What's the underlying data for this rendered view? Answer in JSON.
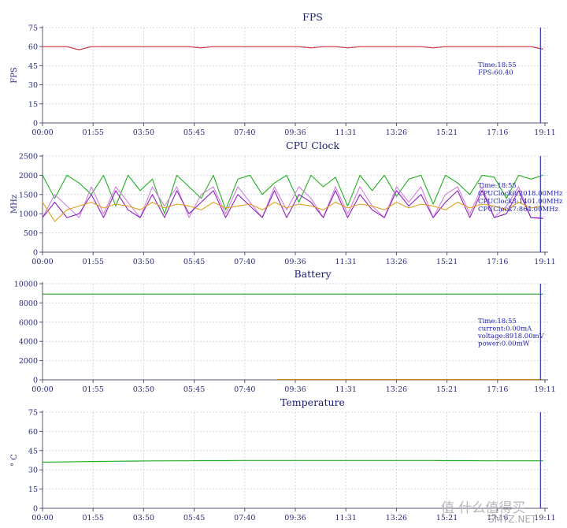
{
  "x_labels": [
    "00:00",
    "01:55",
    "03:50",
    "05:45",
    "07:40",
    "09:36",
    "11:31",
    "13:26",
    "15:21",
    "17:16",
    "19:11"
  ],
  "colors": {
    "axis": "#555577",
    "grid": "#c8d0e0",
    "cursor": "#4a4ab0",
    "text": "#2a2a7a",
    "annotation": "#2020b0"
  },
  "chart_data": [
    {
      "type": "line",
      "title": "FPS",
      "ylabel": "FPS",
      "ylim": [
        0,
        75
      ],
      "yticks": [
        "0",
        "15",
        "30",
        "45",
        "60",
        "75"
      ],
      "series": [
        {
          "color": "#d0303a",
          "values": [
            60,
            60,
            60,
            57.5,
            60,
            60,
            60,
            60,
            60,
            60,
            60,
            60,
            60,
            59,
            60,
            60,
            60,
            60,
            60,
            60,
            60,
            60,
            59,
            60,
            60,
            59,
            60,
            60,
            60,
            60,
            60,
            60,
            59,
            60,
            60,
            60,
            60,
            60,
            60,
            60,
            60,
            58
          ]
        }
      ],
      "annotation": [
        "Time:18:55",
        "FPS:60.40"
      ]
    },
    {
      "type": "line",
      "title": "CPU Clock",
      "ylabel": "MHz",
      "ylim": [
        0,
        2500
      ],
      "yticks": [
        "0",
        "500",
        "1000",
        "1500",
        "2000",
        "2500"
      ],
      "series": [
        {
          "color": "#22b022",
          "values": [
            2000,
            1400,
            2000,
            1800,
            1500,
            2000,
            1200,
            2000,
            1600,
            1900,
            1000,
            2000,
            1700,
            1400,
            2000,
            1100,
            1900,
            2000,
            1500,
            1800,
            2000,
            1300,
            2000,
            1700,
            1950,
            1200,
            2000,
            1600,
            2000,
            1450,
            1900,
            2000,
            1250,
            2000,
            1800,
            1500,
            2000,
            1950,
            1400,
            2000,
            1900,
            2000
          ]
        },
        {
          "color": "#d080e0",
          "values": [
            900,
            1500,
            1200,
            900,
            1700,
            1000,
            1700,
            1300,
            900,
            1700,
            1200,
            1700,
            900,
            1500,
            1700,
            1000,
            1700,
            1300,
            900,
            1700,
            1100,
            1700,
            1400,
            900,
            1700,
            1000,
            1700,
            1200,
            900,
            1700,
            1300,
            1700,
            900,
            1500,
            1700,
            1000,
            1700,
            900,
            1200,
            1700,
            900,
            900
          ]
        },
        {
          "color": "#9020c0",
          "values": [
            900,
            1300,
            900,
            1000,
            1500,
            900,
            1600,
            1100,
            900,
            1500,
            900,
            1600,
            1000,
            1300,
            1600,
            900,
            1500,
            1200,
            900,
            1600,
            900,
            1500,
            1300,
            900,
            1600,
            900,
            1500,
            1100,
            900,
            1600,
            1200,
            1500,
            900,
            1300,
            1600,
            900,
            1600,
            900,
            1000,
            1600,
            900,
            870
          ]
        },
        {
          "color": "#e0a020",
          "values": [
            1300,
            800,
            1100,
            1200,
            1300,
            1150,
            1250,
            1200,
            1100,
            1300,
            1150,
            1250,
            1200,
            1100,
            1300,
            1150,
            1200,
            1250,
            1100,
            1300,
            1150,
            1250,
            1200,
            1100,
            1300,
            1150,
            1250,
            1200,
            1100,
            1300,
            1150,
            1250,
            1200,
            1100,
            1300,
            1150,
            1250,
            1200,
            1100,
            1300,
            1150,
            1200
          ]
        }
      ],
      "annotation": [
        "Time:18:55",
        "CPUClock0:2018.00MHz",
        "CPUClock3:1401.00MHz",
        "CPUClock7:864.00MHz"
      ]
    },
    {
      "type": "line",
      "title": "Battery",
      "ylabel": "",
      "ylim": [
        0,
        10000
      ],
      "yticks": [
        "0",
        "2000",
        "4000",
        "6000",
        "8000",
        "10000"
      ],
      "series": [
        {
          "color": "#22a022",
          "values": [
            8918,
            8918,
            8918,
            8918,
            8918,
            8918,
            8918,
            8918,
            8918,
            8918,
            8918,
            8918,
            8918,
            8918,
            8918,
            8918,
            8918,
            8918,
            8918,
            8918,
            8918,
            8918,
            8918,
            8918,
            8918,
            8918,
            8918,
            8918,
            8918,
            8918,
            8918,
            8918,
            8918,
            8918,
            8918,
            8918,
            8918,
            8918,
            8918,
            8918,
            8918,
            8918
          ]
        },
        {
          "color": "#c08020",
          "x_start": 0.465,
          "values": [
            30,
            30,
            30,
            30,
            30,
            30,
            30,
            30,
            30,
            30,
            30,
            30,
            30,
            30,
            30,
            30,
            30,
            30,
            30,
            30,
            30,
            30,
            30
          ]
        }
      ],
      "annotation": [
        "Time:18:55",
        "current:0.00mA",
        "voltage:8918.00mV",
        "power:0.00mW"
      ]
    },
    {
      "type": "line",
      "title": "Temperature",
      "ylabel": "° C",
      "ylim": [
        0,
        75
      ],
      "yticks": [
        "0",
        "15",
        "30",
        "45",
        "60",
        "75"
      ],
      "series": [
        {
          "color": "#22b022",
          "values": [
            36,
            36.1,
            36.2,
            36.4,
            36.5,
            36.6,
            36.7,
            36.8,
            36.9,
            37,
            37,
            37.1,
            37.1,
            37.2,
            37.2,
            37.2,
            37.3,
            37.3,
            37.3,
            37.3,
            37.3,
            37.3,
            37.3,
            37.3,
            37.3,
            37.3,
            37.3,
            37.3,
            37.3,
            37.3,
            37.3,
            37.3,
            37.3,
            37.2,
            37.2,
            37.2,
            37.1,
            37.1,
            37.1,
            37.1,
            37.1,
            37.1
          ]
        }
      ],
      "annotation": []
    }
  ],
  "watermark": {
    "glyphs": "值 什么值得买",
    "site": "SMYZ.NET"
  }
}
